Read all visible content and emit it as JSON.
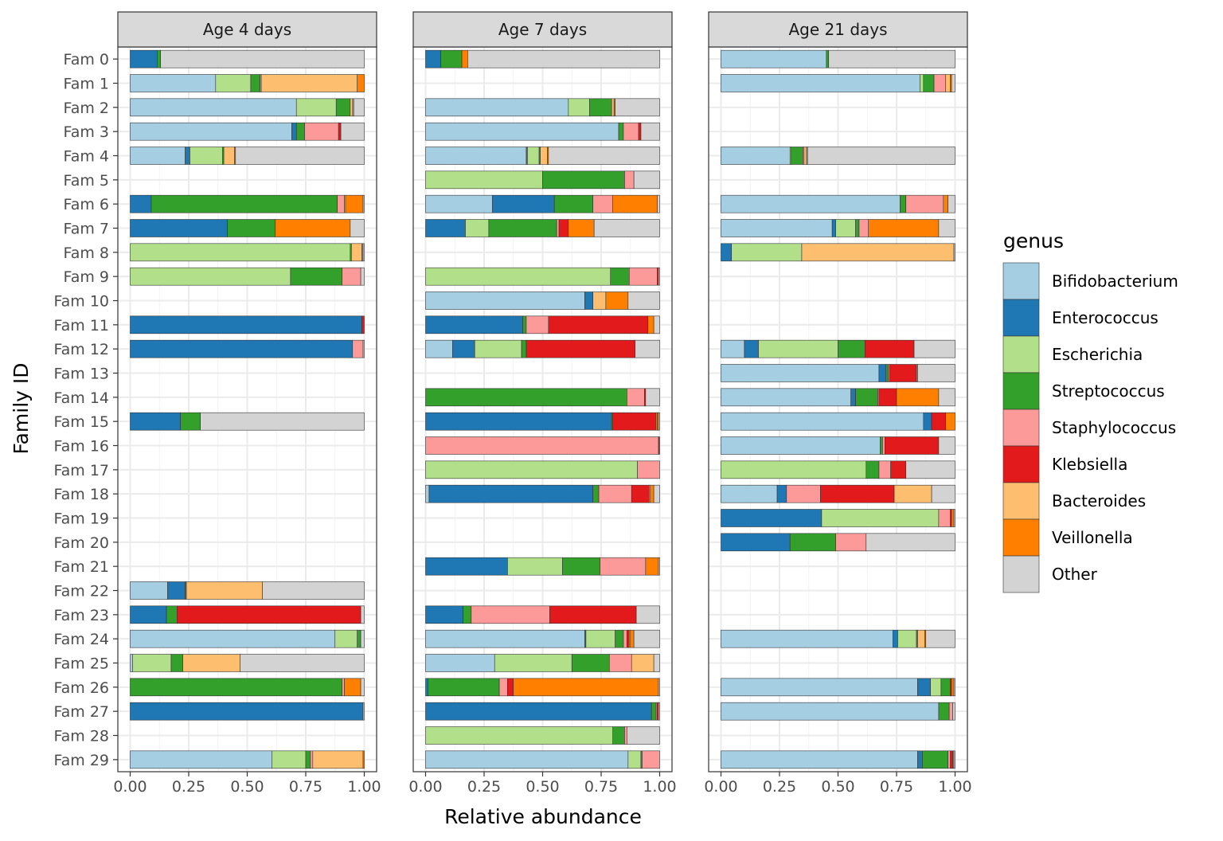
{
  "chart_data": {
    "type": "bar",
    "orientation": "horizontal",
    "stacked": true,
    "xlabel": "Relative abundance",
    "ylabel": "Family ID",
    "xlim": [
      0,
      1
    ],
    "x_ticks": [
      "0.00",
      "0.25",
      "0.50",
      "0.75",
      "1.00"
    ],
    "grid": true,
    "legend_position": "right",
    "legend_title": "genus",
    "genera": [
      "Bifidobacterium",
      "Enterococcus",
      "Escherichia",
      "Streptococcus",
      "Staphylococcus",
      "Klebsiella",
      "Bacteroides",
      "Veillonella",
      "Other"
    ],
    "colors": [
      "#a6cee3",
      "#1f78b4",
      "#b2df8a",
      "#33a02c",
      "#fb9a99",
      "#e31a1c",
      "#fdbf6f",
      "#ff7f00",
      "#d3d3d3"
    ],
    "categories": [
      "Fam 0",
      "Fam 1",
      "Fam 2",
      "Fam 3",
      "Fam 4",
      "Fam 5",
      "Fam 6",
      "Fam 7",
      "Fam 8",
      "Fam 9",
      "Fam 10",
      "Fam 11",
      "Fam 12",
      "Fam 13",
      "Fam 14",
      "Fam 15",
      "Fam 16",
      "Fam 17",
      "Fam 18",
      "Fam 19",
      "Fam 20",
      "Fam 21",
      "Fam 22",
      "Fam 23",
      "Fam 24",
      "Fam 25",
      "Fam 26",
      "Fam 27",
      "Fam 28",
      "Fam 29"
    ],
    "panels": [
      {
        "title": "Age 4 days",
        "rows": {
          "Fam 0": [
            0,
            0.115,
            0,
            0.015,
            0,
            0,
            0,
            0,
            0.87
          ],
          "Fam 1": [
            0.365,
            0,
            0.15,
            0.04,
            0.005,
            0,
            0.41,
            0.03,
            0
          ],
          "Fam 2": [
            0.71,
            0,
            0.17,
            0.06,
            0,
            0,
            0.01,
            0.005,
            0.045
          ],
          "Fam 3": [
            0.69,
            0.02,
            0,
            0.035,
            0.145,
            0.01,
            0,
            0,
            0.1
          ],
          "Fam 4": [
            0.235,
            0.02,
            0.14,
            0.005,
            0,
            0,
            0.045,
            0.005,
            0.55
          ],
          "Fam 5": null,
          "Fam 6": [
            0,
            0.09,
            0,
            0.795,
            0.03,
            0,
            0.005,
            0.075,
            0.005
          ],
          "Fam 7": [
            0,
            0.415,
            0,
            0.205,
            0,
            0,
            0,
            0.32,
            0.06
          ],
          "Fam 8": [
            0,
            0,
            0.94,
            0.005,
            0,
            0,
            0.045,
            0.005,
            0.005
          ],
          "Fam 9": [
            0,
            0,
            0.685,
            0.22,
            0.08,
            0,
            0,
            0,
            0.015
          ],
          "Fam 10": null,
          "Fam 11": [
            0,
            0.99,
            0,
            0,
            0,
            0.01,
            0,
            0,
            0
          ],
          "Fam 12": [
            0,
            0.95,
            0,
            0,
            0.045,
            0,
            0,
            0,
            0.005
          ],
          "Fam 13": null,
          "Fam 14": null,
          "Fam 15": [
            0,
            0.215,
            0,
            0.085,
            0,
            0,
            0,
            0,
            0.7
          ],
          "Fam 16": null,
          "Fam 17": null,
          "Fam 18": null,
          "Fam 19": null,
          "Fam 20": null,
          "Fam 21": null,
          "Fam 22": [
            0.16,
            0.075,
            0,
            0.005,
            0,
            0,
            0.325,
            0,
            0.435
          ],
          "Fam 23": [
            0,
            0.155,
            0,
            0.045,
            0,
            0.785,
            0,
            0,
            0.015
          ],
          "Fam 24": [
            0.875,
            0,
            0.095,
            0.015,
            0,
            0,
            0,
            0,
            0.015
          ],
          "Fam 25": [
            0.01,
            0,
            0.165,
            0.05,
            0,
            0,
            0.245,
            0,
            0.53
          ],
          "Fam 26": [
            0,
            0,
            0,
            0.905,
            0.01,
            0,
            0,
            0.07,
            0.015
          ],
          "Fam 27": [
            0,
            0.995,
            0,
            0,
            0,
            0,
            0,
            0,
            0.005
          ],
          "Fam 28": null,
          "Fam 29": [
            0.605,
            0,
            0.145,
            0.02,
            0.01,
            0,
            0.215,
            0.005,
            0
          ]
        }
      },
      {
        "title": "Age 7 days",
        "rows": {
          "Fam 0": [
            0,
            0.065,
            0,
            0.09,
            0,
            0,
            0,
            0.025,
            0.82
          ],
          "Fam 1": null,
          "Fam 2": [
            0.61,
            0,
            0.09,
            0.095,
            0,
            0,
            0.01,
            0.005,
            0.19
          ],
          "Fam 3": [
            0.825,
            0,
            0,
            0.02,
            0.065,
            0.01,
            0,
            0,
            0.08
          ],
          "Fam 4": [
            0.43,
            0.005,
            0.05,
            0.005,
            0,
            0,
            0.03,
            0.005,
            0.475
          ],
          "Fam 5": [
            0,
            0,
            0.5,
            0.35,
            0.04,
            0,
            0,
            0,
            0.11
          ],
          "Fam 6": [
            0.285,
            0.265,
            0,
            0.165,
            0.085,
            0,
            0,
            0.19,
            0.01
          ],
          "Fam 7": [
            0,
            0.17,
            0.1,
            0.29,
            0.01,
            0.04,
            0,
            0.11,
            0.28
          ],
          "Fam 8": null,
          "Fam 9": [
            0,
            0,
            0.79,
            0.08,
            0.12,
            0.005,
            0,
            0,
            0.005
          ],
          "Fam 10": [
            0.68,
            0.035,
            0,
            0,
            0,
            0,
            0.055,
            0.095,
            0.135
          ],
          "Fam 11": [
            0,
            0.415,
            0,
            0.015,
            0.095,
            0.425,
            0,
            0.025,
            0.025
          ],
          "Fam 12": [
            0.115,
            0.095,
            0.2,
            0.02,
            0,
            0.465,
            0,
            0,
            0.105
          ],
          "Fam 13": null,
          "Fam 14": [
            0,
            0,
            0,
            0.86,
            0.075,
            0.005,
            0,
            0,
            0.06
          ],
          "Fam 15": [
            0,
            0.795,
            0,
            0.005,
            0,
            0.185,
            0.005,
            0.005,
            0.005
          ],
          "Fam 16": [
            0,
            0,
            0,
            0,
            0.995,
            0.005,
            0,
            0,
            0
          ],
          "Fam 17": [
            0,
            0,
            0.905,
            0,
            0.095,
            0,
            0,
            0,
            0
          ],
          "Fam 18": [
            0.015,
            0.7,
            0,
            0.025,
            0.14,
            0.075,
            0.005,
            0.015,
            0.025
          ],
          "Fam 19": null,
          "Fam 20": null,
          "Fam 21": [
            0,
            0.35,
            0.235,
            0.16,
            0.195,
            0,
            0,
            0.055,
            0.005
          ],
          "Fam 22": null,
          "Fam 23": [
            0,
            0.16,
            0,
            0.035,
            0.335,
            0.37,
            0,
            0,
            0.1
          ],
          "Fam 24": [
            0.68,
            0.005,
            0.125,
            0.035,
            0.015,
            0.01,
            0.005,
            0.015,
            0.11
          ],
          "Fam 25": [
            0.295,
            0,
            0.33,
            0.16,
            0.095,
            0,
            0.095,
            0,
            0.025
          ],
          "Fam 26": [
            0,
            0.01,
            0,
            0.305,
            0.035,
            0.025,
            0,
            0.62,
            0.005
          ],
          "Fam 27": [
            0,
            0.965,
            0,
            0.02,
            0.005,
            0.005,
            0,
            0,
            0.005
          ],
          "Fam 28": [
            0,
            0,
            0.8,
            0.05,
            0.01,
            0,
            0,
            0,
            0.14
          ],
          "Fam 29": [
            0.865,
            0,
            0.055,
            0.005,
            0.075,
            0,
            0,
            0,
            0
          ]
        }
      },
      {
        "title": "Age 21 days",
        "rows": {
          "Fam 0": [
            0.45,
            0,
            0,
            0.01,
            0,
            0,
            0,
            0,
            0.54
          ],
          "Fam 1": [
            0.85,
            0,
            0.015,
            0.045,
            0.05,
            0,
            0.02,
            0.005,
            0.015
          ],
          "Fam 2": null,
          "Fam 3": null,
          "Fam 4": [
            0.295,
            0,
            0.005,
            0.05,
            0.005,
            0,
            0.01,
            0.005,
            0.63
          ],
          "Fam 5": null,
          "Fam 6": [
            0.765,
            0,
            0,
            0.025,
            0.16,
            0,
            0,
            0.02,
            0.03
          ],
          "Fam 7": [
            0.475,
            0.015,
            0.085,
            0.015,
            0.04,
            0,
            0,
            0.3,
            0.07
          ],
          "Fam 8": [
            0,
            0.045,
            0.3,
            0,
            0,
            0,
            0.65,
            0,
            0.005
          ],
          "Fam 9": null,
          "Fam 10": null,
          "Fam 11": null,
          "Fam 12": [
            0.1,
            0.06,
            0.34,
            0.115,
            0,
            0.21,
            0,
            0,
            0.175
          ],
          "Fam 13": [
            0.675,
            0.03,
            0,
            0.01,
            0.005,
            0.115,
            0,
            0.005,
            0.16
          ],
          "Fam 14": [
            0.555,
            0.02,
            0,
            0.095,
            0.005,
            0.075,
            0,
            0.18,
            0.07
          ],
          "Fam 15": [
            0.865,
            0.035,
            0,
            0,
            0,
            0.06,
            0,
            0.04,
            0
          ],
          "Fam 16": [
            0.68,
            0,
            0,
            0.01,
            0.01,
            0.23,
            0,
            0,
            0.07
          ],
          "Fam 17": [
            0,
            0,
            0.62,
            0.055,
            0.05,
            0.065,
            0,
            0,
            0.21
          ],
          "Fam 18": [
            0.24,
            0.04,
            0,
            0,
            0.145,
            0.315,
            0.16,
            0,
            0.1
          ],
          "Fam 19": [
            0,
            0.43,
            0.5,
            0,
            0.05,
            0.005,
            0,
            0.01,
            0.005
          ],
          "Fam 20": [
            0,
            0.295,
            0,
            0.195,
            0.13,
            0,
            0,
            0,
            0.38
          ],
          "Fam 21": null,
          "Fam 22": null,
          "Fam 23": null,
          "Fam 24": [
            0.735,
            0.02,
            0.08,
            0.005,
            0,
            0,
            0.03,
            0.005,
            0.125
          ],
          "Fam 25": null,
          "Fam 26": [
            0.84,
            0.055,
            0.045,
            0.04,
            0,
            0.005,
            0,
            0.01,
            0.005
          ],
          "Fam 27": [
            0.93,
            0,
            0,
            0.045,
            0.015,
            0,
            0,
            0,
            0.01
          ],
          "Fam 28": null,
          "Fam 29": [
            0.84,
            0.02,
            0,
            0.11,
            0.01,
            0.01,
            0,
            0.005,
            0.005
          ]
        }
      }
    ]
  }
}
